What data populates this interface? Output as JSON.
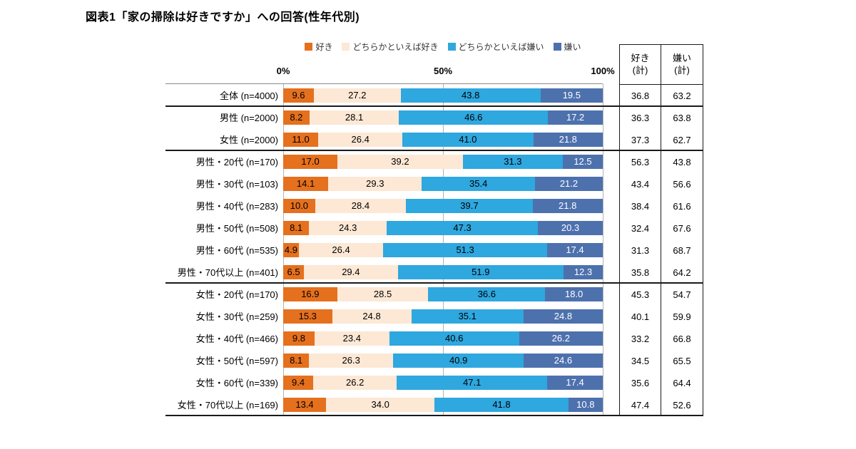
{
  "title": "図表1「家の掃除は好きですか」への回答(性年代別)",
  "colors": {
    "like": "#e5701e",
    "somewhat_like": "#fce8d5",
    "somewhat_dislike": "#2fa7df",
    "dislike": "#4d71ad"
  },
  "summary_table": {
    "columns": [
      {
        "line1": "好き",
        "line2": "(計)"
      },
      {
        "line1": "嫌い",
        "line2": "(計)"
      }
    ]
  },
  "chart_data": {
    "type": "bar",
    "stacked": true,
    "orientation": "horizontal",
    "x_range": [
      0,
      100
    ],
    "x_ticks": [
      "0%",
      "50%",
      "100%"
    ],
    "grid": "vertical at 0/50/100",
    "legend_position": "top",
    "series": [
      "好き",
      "どちらかといえば好き",
      "どちらかといえば嫌い",
      "嫌い"
    ],
    "series_colors": [
      "#e5701e",
      "#fce8d5",
      "#2fa7df",
      "#4d71ad"
    ],
    "rows": [
      {
        "label": "全体 (n=4000)",
        "values": [
          9.6,
          27.2,
          43.8,
          19.5
        ],
        "like_total": "36.8",
        "dislike_total": "63.2",
        "separator_after": true
      },
      {
        "label": "男性 (n=2000)",
        "values": [
          8.2,
          28.1,
          46.6,
          17.2
        ],
        "like_total": "36.3",
        "dislike_total": "63.8",
        "separator_after": false
      },
      {
        "label": "女性 (n=2000)",
        "values": [
          11.0,
          26.4,
          41.0,
          21.8
        ],
        "like_total": "37.3",
        "dislike_total": "62.7",
        "separator_after": true
      },
      {
        "label": "男性・20代 (n=170)",
        "values": [
          17.0,
          39.2,
          31.3,
          12.5
        ],
        "like_total": "56.3",
        "dislike_total": "43.8",
        "separator_after": false
      },
      {
        "label": "男性・30代 (n=103)",
        "values": [
          14.1,
          29.3,
          35.4,
          21.2
        ],
        "like_total": "43.4",
        "dislike_total": "56.6",
        "separator_after": false
      },
      {
        "label": "男性・40代 (n=283)",
        "values": [
          10.0,
          28.4,
          39.7,
          21.8
        ],
        "like_total": "38.4",
        "dislike_total": "61.6",
        "separator_after": false
      },
      {
        "label": "男性・50代 (n=508)",
        "values": [
          8.1,
          24.3,
          47.3,
          20.3
        ],
        "like_total": "32.4",
        "dislike_total": "67.6",
        "separator_after": false
      },
      {
        "label": "男性・60代 (n=535)",
        "values": [
          4.9,
          26.4,
          51.3,
          17.4
        ],
        "like_total": "31.3",
        "dislike_total": "68.7",
        "separator_after": false
      },
      {
        "label": "男性・70代以上 (n=401)",
        "values": [
          6.5,
          29.4,
          51.9,
          12.3
        ],
        "like_total": "35.8",
        "dislike_total": "64.2",
        "separator_after": true
      },
      {
        "label": "女性・20代 (n=170)",
        "values": [
          16.9,
          28.5,
          36.6,
          18.0
        ],
        "like_total": "45.3",
        "dislike_total": "54.7",
        "separator_after": false
      },
      {
        "label": "女性・30代 (n=259)",
        "values": [
          15.3,
          24.8,
          35.1,
          24.8
        ],
        "like_total": "40.1",
        "dislike_total": "59.9",
        "separator_after": false
      },
      {
        "label": "女性・40代 (n=466)",
        "values": [
          9.8,
          23.4,
          40.6,
          26.2
        ],
        "like_total": "33.2",
        "dislike_total": "66.8",
        "separator_after": false
      },
      {
        "label": "女性・50代 (n=597)",
        "values": [
          8.1,
          26.3,
          40.9,
          24.6
        ],
        "like_total": "34.5",
        "dislike_total": "65.5",
        "separator_after": false
      },
      {
        "label": "女性・60代 (n=339)",
        "values": [
          9.4,
          26.2,
          47.1,
          17.4
        ],
        "like_total": "35.6",
        "dislike_total": "64.4",
        "separator_after": false
      },
      {
        "label": "女性・70代以上 (n=169)",
        "values": [
          13.4,
          34.0,
          41.8,
          10.8
        ],
        "like_total": "47.4",
        "dislike_total": "52.6",
        "separator_after": true
      }
    ]
  }
}
